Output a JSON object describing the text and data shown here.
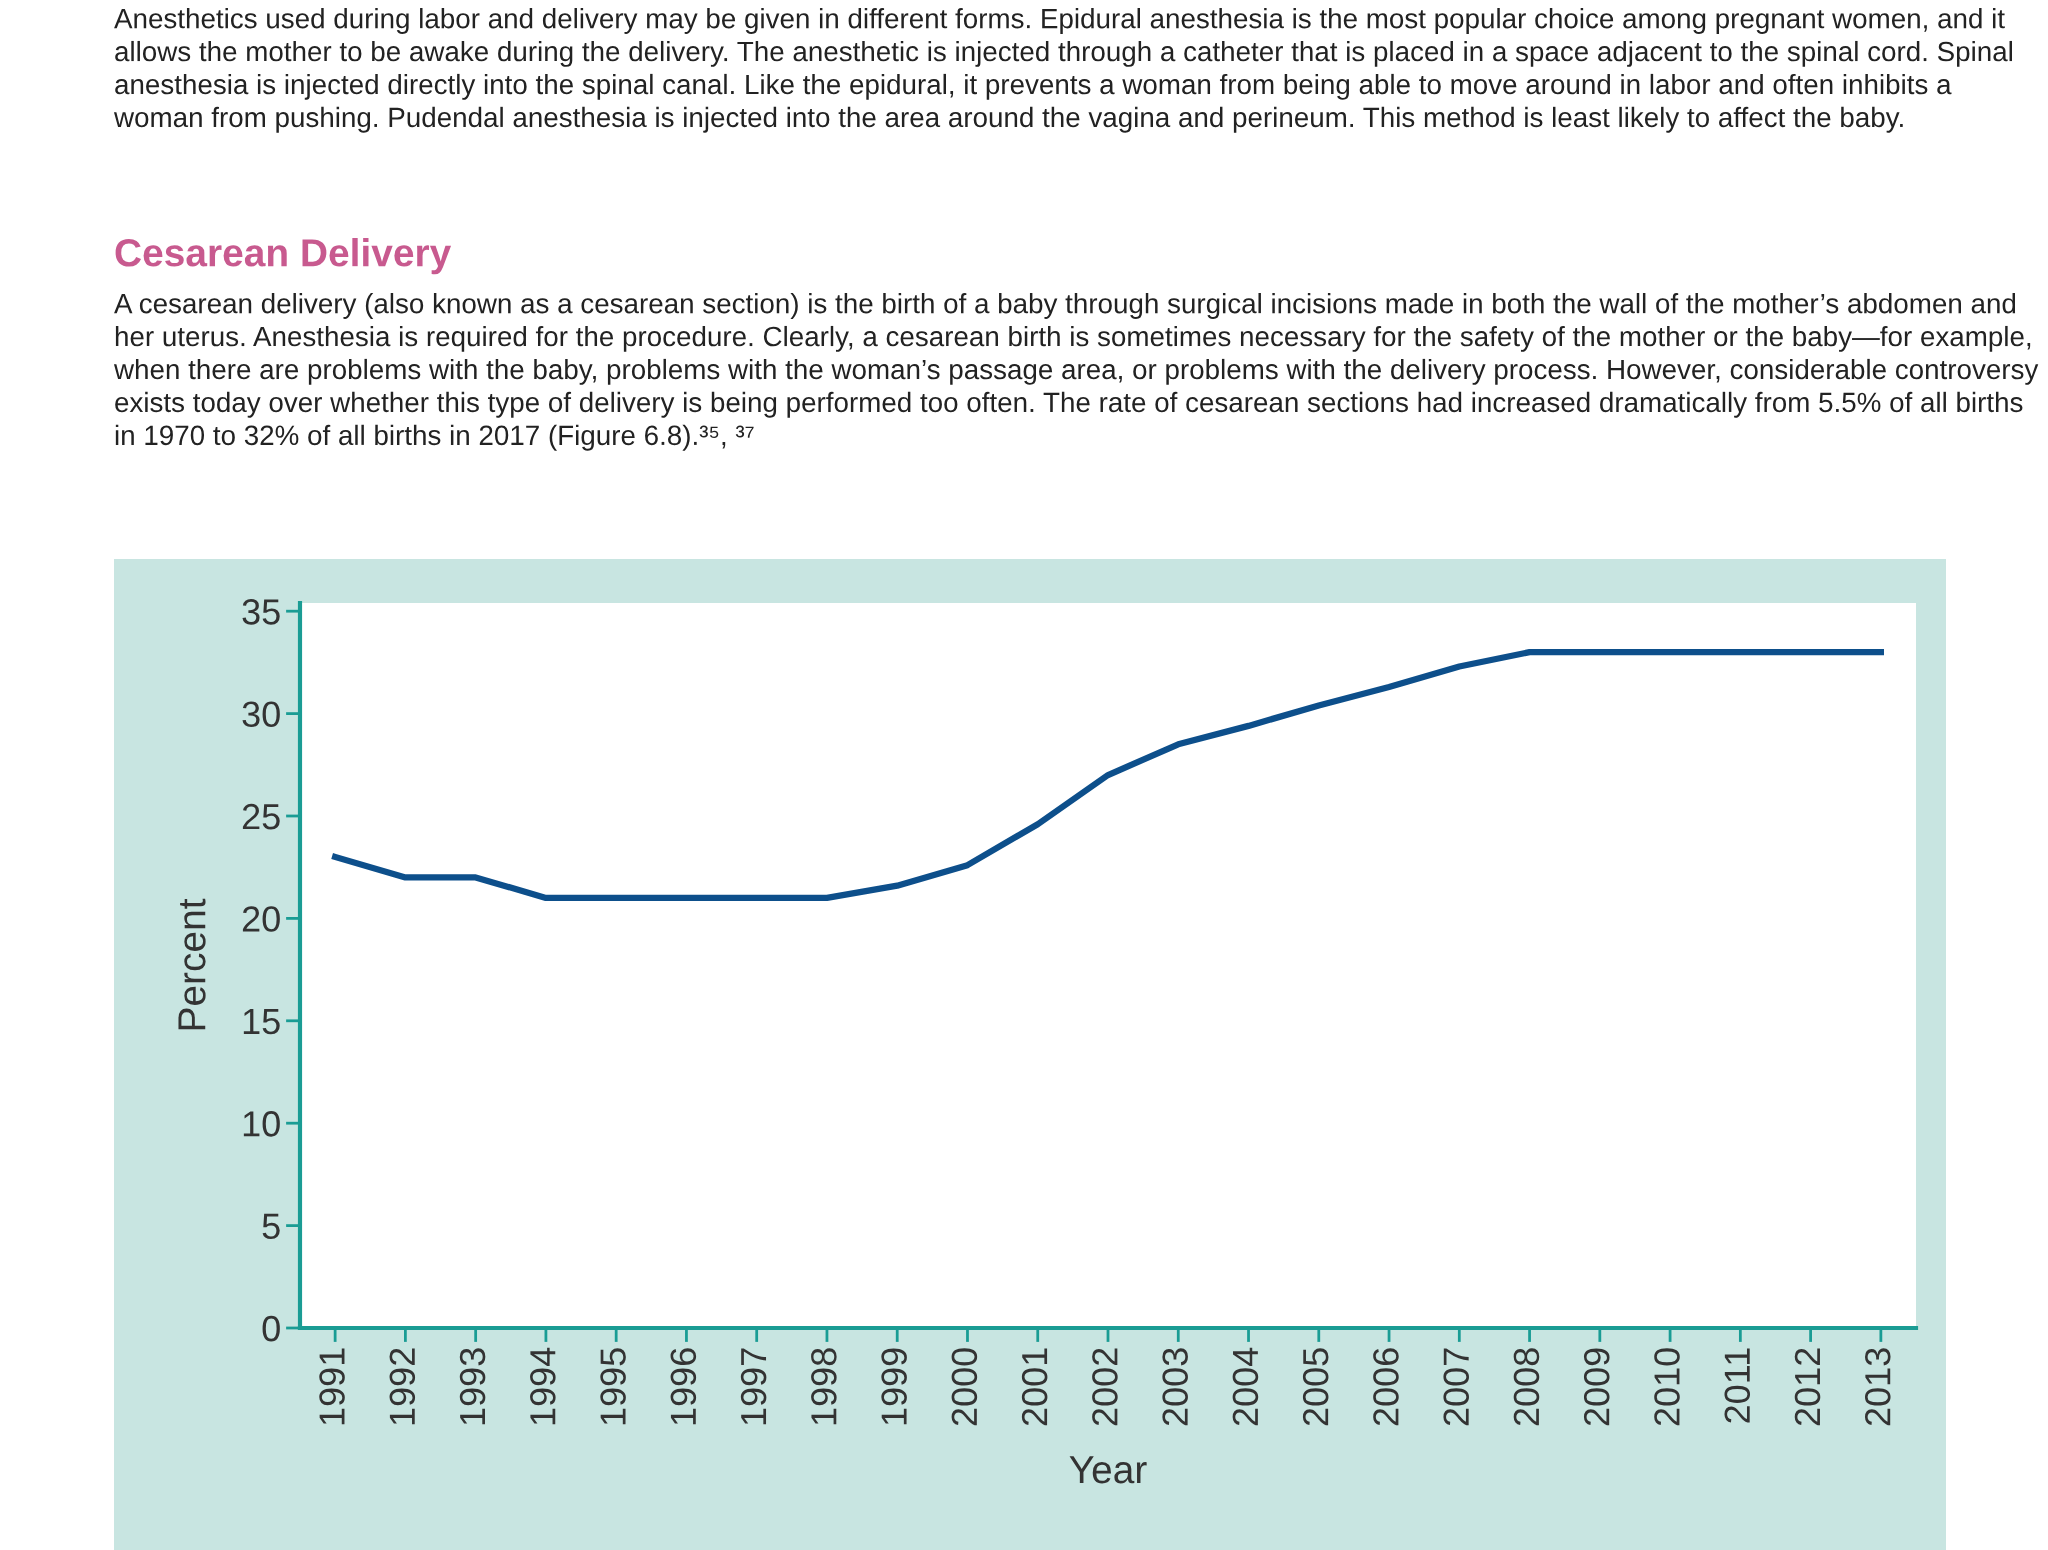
{
  "chart_data": {
    "type": "line",
    "title": "Cesarean Delivery",
    "annotations": [
      "Anesthetics used during labor and delivery may be given in different forms. Epidural anesthesia is the most popular choice among pregnant women, and it allows the mother to be awake during the delivery. The anesthetic is injected through a catheter that is placed in a space adjacent to the spinal cord. Spinal anesthesia is injected directly into the spinal canal. Like the epidural, it prevents a woman from being able to move around in labor and often inhibits a woman from pushing. Pudendal anesthesia is injected into the area around the vagina and perineum. This method is least likely to affect the baby.",
      "A cesarean delivery (also known as a cesarean section) is the birth of a baby through surgical incisions made in both the wall of the mother’s abdomen and her uterus. Anesthesia is required for the procedure. Clearly, a cesarean birth is sometimes necessary for the safety of the mother or the baby—for example, when there are problems with the baby, problems with the woman’s passage area, or problems with the delivery process. However, considerable controversy exists today over whether this type of delivery is being performed too often. The rate of cesarean sections had increased dramatically from 5.5% of all births in 1970 to 32% of all births in 2017 (Figure 6.8).³⁵, ³⁷"
    ],
    "xlabel": "Year",
    "ylabel": "Percent",
    "x": [
      1991,
      1992,
      1993,
      1994,
      1995,
      1996,
      1997,
      1998,
      1999,
      2000,
      2001,
      2002,
      2003,
      2004,
      2005,
      2006,
      2007,
      2008,
      2009,
      2010,
      2011,
      2012,
      2013
    ],
    "series": [
      {
        "color": "#0d4f8b",
        "values": [
          23,
          22,
          22,
          21,
          21,
          21,
          21,
          21,
          21.6,
          22.6,
          24.6,
          27.0,
          28.5,
          29.4,
          30.4,
          31.3,
          32.3,
          33,
          33,
          33,
          33,
          33,
          33
        ]
      }
    ],
    "xlim": [
      1990.5,
      2013.5
    ],
    "xticks": [
      1991,
      1992,
      1993,
      1994,
      1995,
      1996,
      1997,
      1998,
      1999,
      2000,
      2001,
      2002,
      2003,
      2004,
      2005,
      2006,
      2007,
      2008,
      2009,
      2010,
      2011,
      2012,
      2013
    ],
    "ylim": [
      0,
      35.4
    ],
    "yticks": [
      0,
      5,
      10,
      15,
      20,
      25,
      30,
      35
    ],
    "grid": false,
    "marker": "none",
    "line_style": "solid"
  }
}
